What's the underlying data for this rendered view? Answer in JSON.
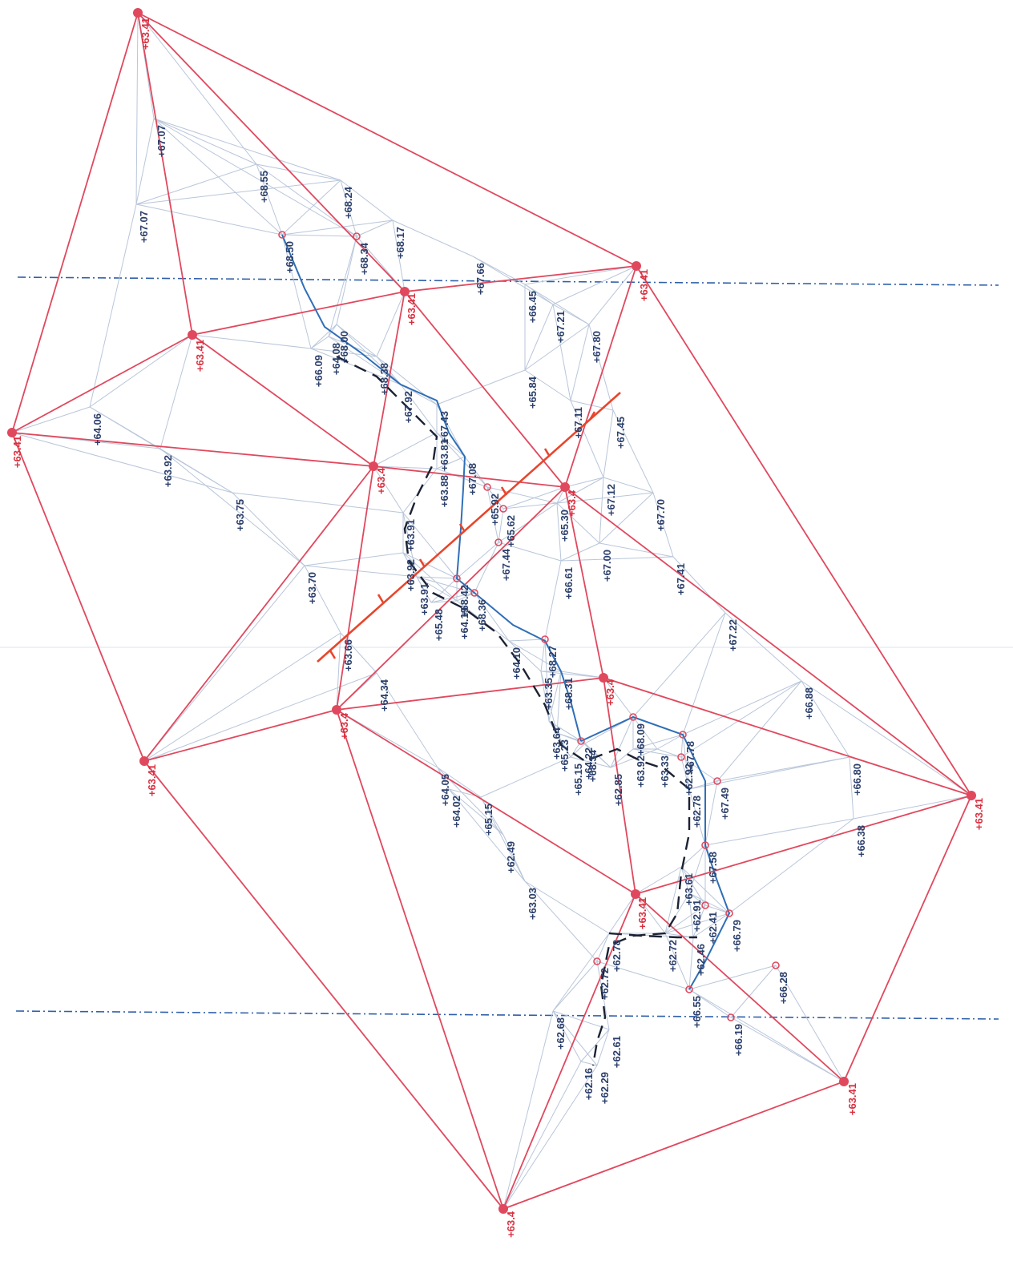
{
  "colors": {
    "tin_light": "#b9c6da",
    "boundary": "#e0485e",
    "breakline_blue": "#2f6fb7",
    "breakline_dark": "#1b2233",
    "guide": "#2f5fa8",
    "section": "#e8452c"
  },
  "boundary_label": "+63.41",
  "boundary_labels": [
    {
      "id": "b1",
      "text": "+63.41"
    },
    {
      "id": "b2",
      "text": "+63.41"
    },
    {
      "id": "b3",
      "text": "+63.4"
    },
    {
      "id": "b4",
      "text": "+63.41"
    },
    {
      "id": "b5",
      "text": "+63.41"
    },
    {
      "id": "b6",
      "text": "+63.41"
    },
    {
      "id": "b7",
      "text": "+63.4"
    },
    {
      "id": "b8",
      "text": "+63.4"
    },
    {
      "id": "b9",
      "text": "+63.4"
    },
    {
      "id": "b10",
      "text": "+63.41"
    },
    {
      "id": "b11",
      "text": "+63.41"
    },
    {
      "id": "b12",
      "text": "+63.41"
    },
    {
      "id": "b13",
      "text": "+63.41"
    },
    {
      "id": "b14",
      "text": "+63.4"
    },
    {
      "id": "b15",
      "text": "+63.41"
    },
    {
      "id": "b16",
      "text": "+63.4"
    }
  ],
  "elevations": [
    {
      "id": "e1",
      "text": "+67.07"
    },
    {
      "id": "e2",
      "text": "+67.07"
    },
    {
      "id": "e3",
      "text": "+68.55"
    },
    {
      "id": "e4",
      "text": "+68.24"
    },
    {
      "id": "e5",
      "text": "+68.50"
    },
    {
      "id": "e6",
      "text": "+68.34"
    },
    {
      "id": "e7",
      "text": "+68.17"
    },
    {
      "id": "e8",
      "text": "+67.66"
    },
    {
      "id": "e9",
      "text": "+66.45"
    },
    {
      "id": "e10",
      "text": "+67.21"
    },
    {
      "id": "e11",
      "text": "+67.80"
    },
    {
      "id": "e12",
      "text": "+66.09"
    },
    {
      "id": "e13",
      "text": "+64.08"
    },
    {
      "id": "e14",
      "text": "+68.00"
    },
    {
      "id": "e15",
      "text": "+68.38"
    },
    {
      "id": "e16",
      "text": "+64.06"
    },
    {
      "id": "e17",
      "text": "+67.92"
    },
    {
      "id": "e18",
      "text": "+65.84"
    },
    {
      "id": "e19",
      "text": "+67.11"
    },
    {
      "id": "e20",
      "text": "+67.45"
    },
    {
      "id": "e21",
      "text": "+67.43"
    },
    {
      "id": "e22",
      "text": "+63.92"
    },
    {
      "id": "e23",
      "text": "+63.75"
    },
    {
      "id": "e24",
      "text": "+63.81"
    },
    {
      "id": "e25",
      "text": "+63.88"
    },
    {
      "id": "e26",
      "text": "+67.08"
    },
    {
      "id": "e27",
      "text": "+67.12"
    },
    {
      "id": "e28",
      "text": "+67.70"
    },
    {
      "id": "e29",
      "text": "+65.92"
    },
    {
      "id": "e30",
      "text": "+65.62"
    },
    {
      "id": "e31",
      "text": "+65.30"
    },
    {
      "id": "e32",
      "text": "+63.91"
    },
    {
      "id": "e33",
      "text": "+63.70"
    },
    {
      "id": "e34",
      "text": "+63.92"
    },
    {
      "id": "e35",
      "text": "+67.44"
    },
    {
      "id": "e36",
      "text": "+67.00"
    },
    {
      "id": "e37",
      "text": "+67.41"
    },
    {
      "id": "e38",
      "text": "+66.61"
    },
    {
      "id": "e39",
      "text": "+63.91"
    },
    {
      "id": "e40",
      "text": "+68.42"
    },
    {
      "id": "e41",
      "text": "+65.48"
    },
    {
      "id": "e42",
      "text": "+64.19"
    },
    {
      "id": "e43",
      "text": "+68.36"
    },
    {
      "id": "e44",
      "text": "+63.66"
    },
    {
      "id": "e45",
      "text": "+64.10"
    },
    {
      "id": "e46",
      "text": "+68.27"
    },
    {
      "id": "e47",
      "text": "+67.22"
    },
    {
      "id": "e48",
      "text": "+64.34"
    },
    {
      "id": "e49",
      "text": "+63.35"
    },
    {
      "id": "e50",
      "text": "+68.31"
    },
    {
      "id": "e51",
      "text": "+66.88"
    },
    {
      "id": "e52",
      "text": "+63.64"
    },
    {
      "id": "e53",
      "text": "+65.23"
    },
    {
      "id": "e54",
      "text": "+68.09"
    },
    {
      "id": "e55",
      "text": "+67.78"
    },
    {
      "id": "e56",
      "text": "+64.05"
    },
    {
      "id": "e57",
      "text": "+65.15"
    },
    {
      "id": "e58",
      "text": "+64.22"
    },
    {
      "id": "e59",
      "text": "+68.34"
    },
    {
      "id": "e60",
      "text": "+62.85"
    },
    {
      "id": "e61",
      "text": "+63.92"
    },
    {
      "id": "e62",
      "text": "+63.33"
    },
    {
      "id": "e63",
      "text": "+62.92"
    },
    {
      "id": "e64",
      "text": "+66.80"
    },
    {
      "id": "e65",
      "text": "+64.02"
    },
    {
      "id": "e66",
      "text": "+65.15"
    },
    {
      "id": "e67",
      "text": "+67.49"
    },
    {
      "id": "e68",
      "text": "+62.78"
    },
    {
      "id": "e69",
      "text": "+66.38"
    },
    {
      "id": "e70",
      "text": "+62.49"
    },
    {
      "id": "e71",
      "text": "+67.58"
    },
    {
      "id": "e72",
      "text": "+63.03"
    },
    {
      "id": "e73",
      "text": "+63.61"
    },
    {
      "id": "e74",
      "text": "+62.91"
    },
    {
      "id": "e75",
      "text": "+62.41"
    },
    {
      "id": "e76",
      "text": "+66.79"
    },
    {
      "id": "e77",
      "text": "+62.78"
    },
    {
      "id": "e78",
      "text": "+62.72"
    },
    {
      "id": "e79",
      "text": "+62.46"
    },
    {
      "id": "e80",
      "text": "+62.72"
    },
    {
      "id": "e81",
      "text": "+66.28"
    },
    {
      "id": "e82",
      "text": "+66.55"
    },
    {
      "id": "e83",
      "text": "+62.68"
    },
    {
      "id": "e84",
      "text": "+66.19"
    },
    {
      "id": "e85",
      "text": "+62.61"
    },
    {
      "id": "e86",
      "text": "+62.16"
    },
    {
      "id": "e87",
      "text": "+62.29"
    }
  ]
}
